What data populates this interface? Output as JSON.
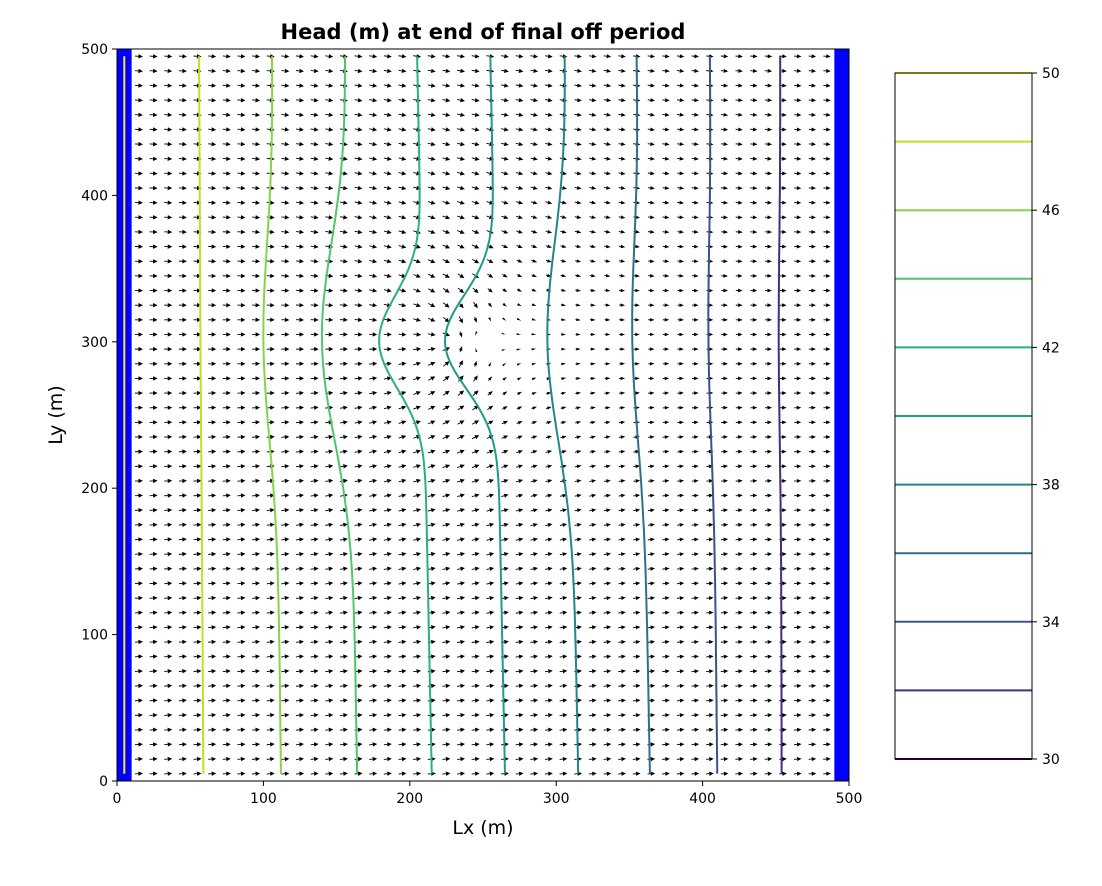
{
  "chart_data": {
    "type": "contour",
    "title": "Head (m) at end of final off period",
    "xlabel": "Lx (m)",
    "ylabel": "Ly (m)",
    "xlim": [
      0,
      500
    ],
    "ylim": [
      0,
      500
    ],
    "xticks": [
      "0",
      "100",
      "200",
      "300",
      "400",
      "500"
    ],
    "yticks": [
      "0",
      "100",
      "200",
      "300",
      "400",
      "500"
    ],
    "grid": false,
    "constant_head_boundaries": [
      {
        "side": "left",
        "x_range": [
          0,
          10
        ],
        "color": "#0000ff"
      },
      {
        "side": "right",
        "x_range": [
          490,
          500
        ],
        "color": "#0000ff"
      }
    ],
    "contour_levels": [
      {
        "level": 50,
        "color": "#fde725",
        "x_top": 5,
        "x_bottom": 5,
        "x_mid": 5
      },
      {
        "level": 48,
        "color": "#c2df23",
        "x_top": 56,
        "x_bottom": 59,
        "x_mid": 57
      },
      {
        "level": 46,
        "color": "#86d549",
        "x_top": 106,
        "x_bottom": 112,
        "x_mid": 100
      },
      {
        "level": 44,
        "color": "#52c569",
        "x_top": 156,
        "x_bottom": 164,
        "x_mid": 140
      },
      {
        "level": 42,
        "color": "#2ab07f",
        "x_top": 205,
        "x_bottom": 215,
        "x_mid": 179
      },
      {
        "level": 40,
        "color": "#1e9b8a",
        "x_top": 255,
        "x_bottom": 265,
        "x_mid": 224
      },
      {
        "level": 38,
        "color": "#25858e",
        "x_top": 306,
        "x_bottom": 315,
        "x_mid": 294
      },
      {
        "level": 36,
        "color": "#2d708e",
        "x_top": 355,
        "x_bottom": 364,
        "x_mid": 352
      },
      {
        "level": 34,
        "color": "#3b528b",
        "x_top": 405,
        "x_bottom": 410,
        "x_mid": 404
      },
      {
        "level": 32,
        "color": "#472d7b",
        "x_top": 453,
        "x_bottom": 454,
        "x_mid": 452
      }
    ],
    "well_location": [
      230,
      300
    ],
    "quiver_spacing": 10,
    "colorbar": {
      "ticks": [
        "30",
        "34",
        "38",
        "42",
        "46",
        "50"
      ],
      "range": [
        30,
        50
      ],
      "levels": [
        30,
        32,
        34,
        36,
        38,
        40,
        42,
        44,
        46,
        48,
        50
      ],
      "colors": [
        "#440154",
        "#472d7b",
        "#3b528b",
        "#2d708e",
        "#25858e",
        "#1e9b8a",
        "#2ab07f",
        "#52c569",
        "#86d549",
        "#c2df23",
        "#fde725"
      ]
    }
  }
}
